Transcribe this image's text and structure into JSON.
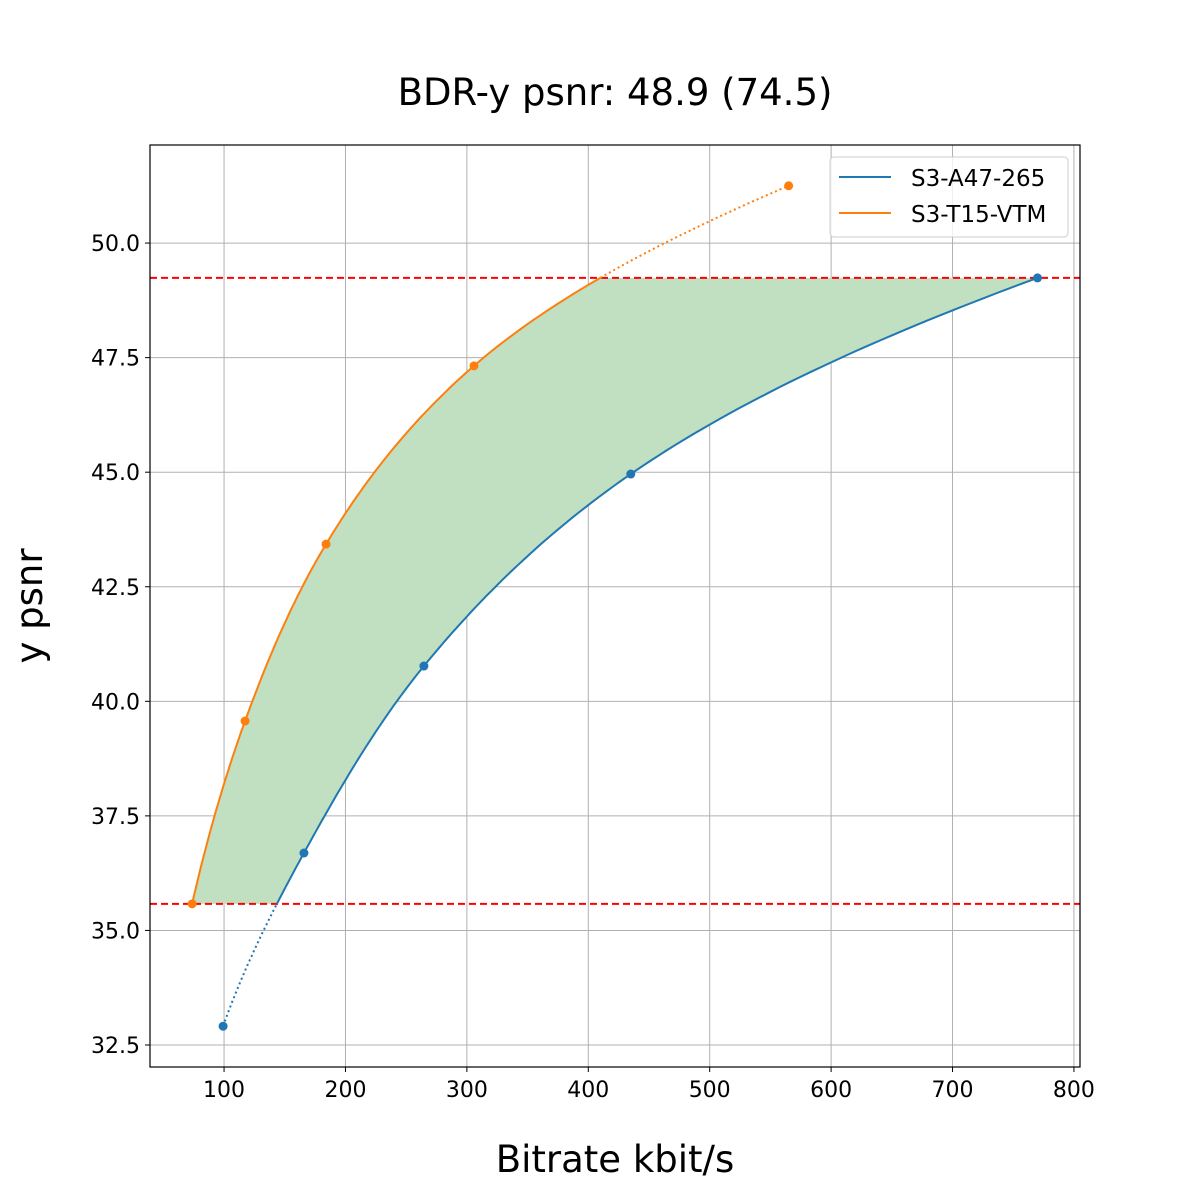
{
  "chart_data": {
    "type": "line",
    "title": "BDR-y psnr: 48.9 (74.5)",
    "xlabel": "Bitrate kbit/s",
    "ylabel": "y psnr",
    "xlim": [
      39,
      805
    ],
    "ylim": [
      32.02,
      52.14
    ],
    "grid": true,
    "legend_position": "top-right",
    "x_ticks": [
      "100",
      "200",
      "300",
      "400",
      "500",
      "600",
      "700",
      "800"
    ],
    "y_ticks": [
      "32.5",
      "35.0",
      "37.5",
      "40.0",
      "42.5",
      "45.0",
      "47.5",
      "50.0"
    ],
    "series": [
      {
        "name": "S3-A47-265",
        "color": "#1f77b4",
        "x": [
          99.2,
          165.8,
          264.6,
          435.0,
          770.0
        ],
        "y": [
          32.91,
          36.69,
          40.77,
          44.96,
          49.24
        ]
      },
      {
        "name": "S3-T15-VTM",
        "color": "#ff7f0e",
        "x": [
          73.7,
          117.3,
          184.0,
          305.8,
          565.0
        ],
        "y": [
          35.58,
          39.57,
          43.43,
          47.32,
          51.25
        ]
      }
    ],
    "reference_lines": {
      "color": "#ff0000",
      "style": "dashed",
      "y": [
        35.58,
        49.24
      ]
    },
    "fill": {
      "color": "#c1dfc1",
      "between_y": [
        35.58,
        49.24
      ]
    }
  }
}
